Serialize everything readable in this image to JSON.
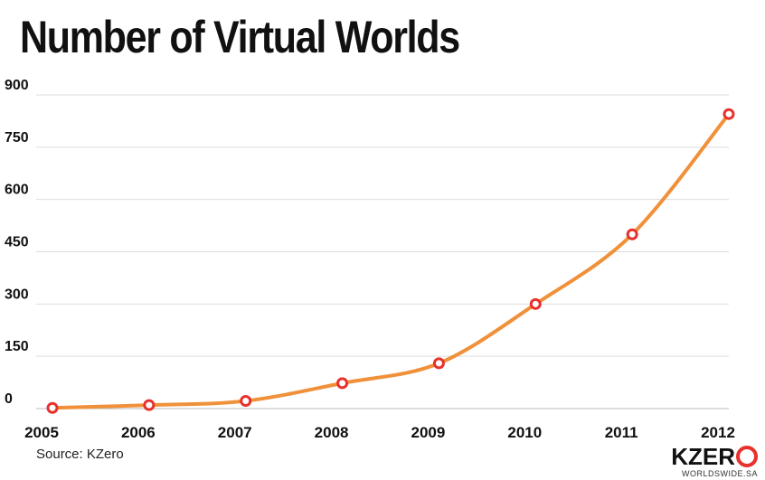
{
  "chart_data": {
    "type": "line",
    "title": "Number of Virtual Worlds",
    "xlabel": "",
    "ylabel": "",
    "categories": [
      "2005",
      "2006",
      "2007",
      "2008",
      "2009",
      "2010",
      "2011",
      "2012"
    ],
    "series": [
      {
        "values": [
          2,
          10,
          22,
          73,
          130,
          300,
          500,
          845
        ]
      }
    ],
    "yticks": [
      0,
      150,
      300,
      450,
      600,
      750,
      900
    ],
    "ylim": [
      0,
      900
    ],
    "grid": true,
    "legend": "none",
    "colors": {
      "line": "#f0913a",
      "marker_stroke": "#e8312b",
      "marker_fill": "#ffffff",
      "grid": "#dddddd"
    }
  },
  "source": "Source: KZero",
  "logo": {
    "main": "KZER",
    "sub": "WORLDSWIDE.SA"
  }
}
